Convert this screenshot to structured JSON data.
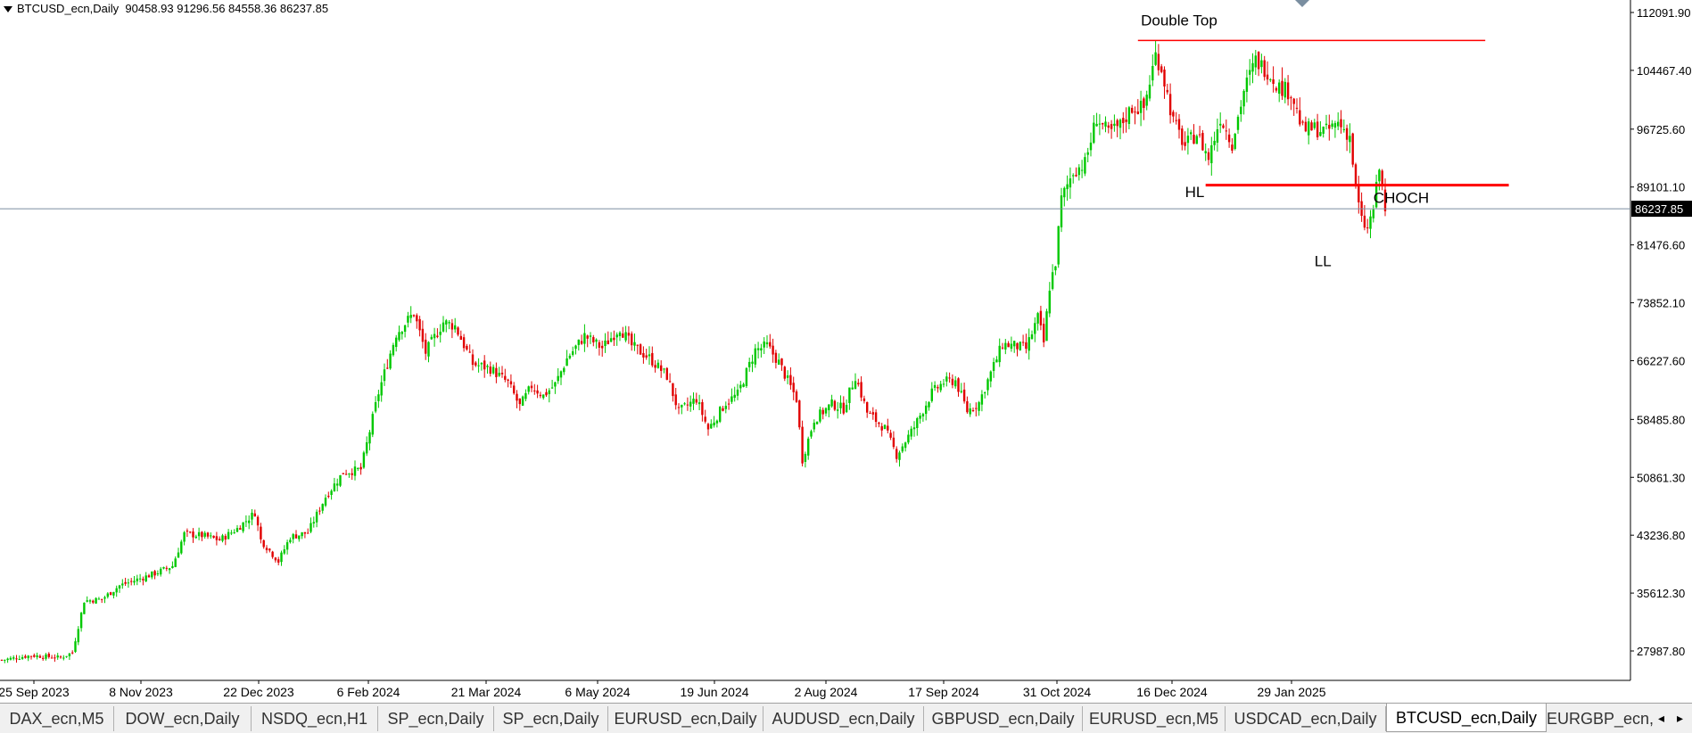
{
  "window": {
    "symbol_info": "BTCUSD_ecn,Daily",
    "ohlc": "90458.93 91296.56 84558.36 86237.85"
  },
  "chart_data": {
    "type": "candlestick",
    "title": "",
    "price_axis_labels": [
      "112091.90",
      "104467.40",
      "96725.60",
      "89101.10",
      "81476.60",
      "73852.10",
      "66227.60",
      "58485.80",
      "50861.30",
      "43236.80",
      "35612.30",
      "27987.80"
    ],
    "current_price_label": "86237.85",
    "current_price": 86237.85,
    "date_axis_labels": [
      "25 Sep 2023",
      "8 Nov 2023",
      "22 Dec 2023",
      "6 Feb 2024",
      "21 Mar 2024",
      "6 May 2024",
      "19 Jun 2024",
      "2 Aug 2024",
      "17 Sep 2024",
      "31 Oct 2024",
      "16 Dec 2024",
      "29 Jan 2025"
    ],
    "ylim": [
      22000,
      113500
    ],
    "bars_per_day_px": 3.3,
    "colors": {
      "up": "#00c800",
      "down": "#e10000",
      "level_line": "#ff0000",
      "price_line": "#7a8ea0"
    },
    "close_path": [
      [
        0,
        26800
      ],
      [
        10,
        27400
      ],
      [
        20,
        27100
      ],
      [
        24,
        27800
      ],
      [
        28,
        34600
      ],
      [
        34,
        34800
      ],
      [
        40,
        36600
      ],
      [
        46,
        37400
      ],
      [
        52,
        38200
      ],
      [
        58,
        39200
      ],
      [
        62,
        43400
      ],
      [
        68,
        43200
      ],
      [
        74,
        42600
      ],
      [
        80,
        44100
      ],
      [
        86,
        46200
      ],
      [
        88,
        42600
      ],
      [
        94,
        39800
      ],
      [
        98,
        43000
      ],
      [
        104,
        43600
      ],
      [
        110,
        48300
      ],
      [
        116,
        51500
      ],
      [
        122,
        51900
      ],
      [
        128,
        62000
      ],
      [
        134,
        69800
      ],
      [
        140,
        72500
      ],
      [
        144,
        67300
      ],
      [
        150,
        71300
      ],
      [
        154,
        70800
      ],
      [
        160,
        65800
      ],
      [
        166,
        65200
      ],
      [
        172,
        63300
      ],
      [
        176,
        60200
      ],
      [
        180,
        62900
      ],
      [
        184,
        61600
      ],
      [
        188,
        63100
      ],
      [
        192,
        66500
      ],
      [
        198,
        69500
      ],
      [
        204,
        67900
      ],
      [
        210,
        70600
      ],
      [
        214,
        68200
      ],
      [
        220,
        66600
      ],
      [
        226,
        64200
      ],
      [
        230,
        59500
      ],
      [
        236,
        61200
      ],
      [
        240,
        57200
      ],
      [
        246,
        60700
      ],
      [
        250,
        61800
      ],
      [
        256,
        67600
      ],
      [
        260,
        68200
      ],
      [
        264,
        66000
      ],
      [
        270,
        61200
      ],
      [
        272,
        53200
      ],
      [
        276,
        58500
      ],
      [
        282,
        60500
      ],
      [
        286,
        59900
      ],
      [
        290,
        64200
      ],
      [
        294,
        59400
      ],
      [
        300,
        57300
      ],
      [
        304,
        53800
      ],
      [
        310,
        57500
      ],
      [
        316,
        62000
      ],
      [
        320,
        63400
      ],
      [
        324,
        63600
      ],
      [
        328,
        59600
      ],
      [
        332,
        60700
      ],
      [
        336,
        64600
      ],
      [
        340,
        68400
      ],
      [
        344,
        68200
      ],
      [
        348,
        67800
      ],
      [
        352,
        71900
      ],
      [
        354,
        68600
      ],
      [
        356,
        76000
      ],
      [
        358,
        79200
      ],
      [
        360,
        87500
      ],
      [
        364,
        91200
      ],
      [
        368,
        92200
      ],
      [
        372,
        98300
      ],
      [
        376,
        96100
      ],
      [
        380,
        97200
      ],
      [
        384,
        99600
      ],
      [
        388,
        99500
      ],
      [
        392,
        106500
      ],
      [
        394,
        104800
      ],
      [
        398,
        97700
      ],
      [
        402,
        94500
      ],
      [
        406,
        96200
      ],
      [
        410,
        92900
      ],
      [
        414,
        98300
      ],
      [
        418,
        94900
      ],
      [
        422,
        101800
      ],
      [
        426,
        105800
      ],
      [
        430,
        104400
      ],
      [
        434,
        102300
      ],
      [
        438,
        101600
      ],
      [
        442,
        96600
      ],
      [
        446,
        96800
      ],
      [
        450,
        96400
      ],
      [
        454,
        97600
      ],
      [
        458,
        95800
      ],
      [
        460,
        88800
      ],
      [
        462,
        84600
      ],
      [
        464,
        83500
      ],
      [
        466,
        86300
      ],
      [
        468,
        91500
      ],
      [
        470,
        86200
      ]
    ],
    "horizontal_levels": [
      {
        "price": 108400,
        "from_index": 386,
        "to_index": 504
      },
      {
        "price": 89350,
        "from_index": 409,
        "to_index": 512
      }
    ],
    "annotations": [
      {
        "text": "Double Top",
        "price": 110400,
        "index": 387
      },
      {
        "text": "HL",
        "price": 87800,
        "index": 402
      },
      {
        "text": "CHOCH",
        "price": 87000,
        "index": 466
      },
      {
        "text": "LL",
        "price": 78700,
        "index": 446
      }
    ]
  },
  "tabs": [
    {
      "label": "DAX_ecn,M5",
      "active": false
    },
    {
      "label": "DOW_ecn,Daily",
      "active": false
    },
    {
      "label": "NSDQ_ecn,H1",
      "active": false
    },
    {
      "label": "SP_ecn,Daily",
      "active": false
    },
    {
      "label": "SP_ecn,Daily",
      "active": false
    },
    {
      "label": "EURUSD_ecn,Daily",
      "active": false
    },
    {
      "label": "AUDUSD_ecn,Daily",
      "active": false
    },
    {
      "label": "GBPUSD_ecn,Daily",
      "active": false
    },
    {
      "label": "EURUSD_ecn,M5",
      "active": false
    },
    {
      "label": "USDCAD_ecn,Daily",
      "active": false
    },
    {
      "label": "BTCUSD_ecn,Daily",
      "active": true
    },
    {
      "label": "EURGBP_ecn,Daily",
      "active": false
    }
  ],
  "tab_nav": {
    "left": "◂",
    "right": "▸"
  }
}
